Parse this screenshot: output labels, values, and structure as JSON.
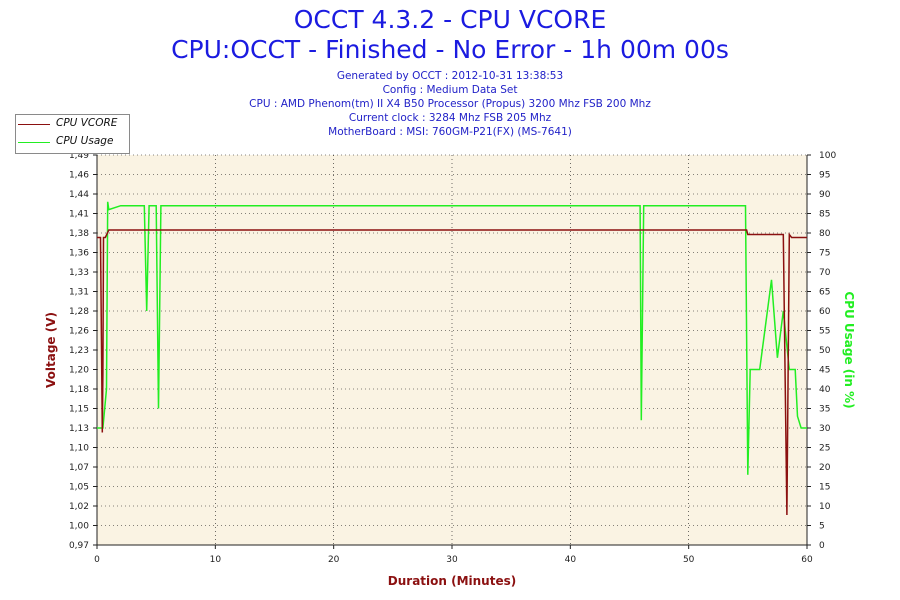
{
  "header": {
    "title": "OCCT 4.3.2 - CPU VCORE",
    "subtitle": "CPU:OCCT - Finished - No Error - 1h 00m 00s",
    "generated": "Generated by OCCT : 2012-10-31 13:38:53",
    "config": "Config : Medium Data Set",
    "cpu": "CPU : AMD Phenom(tm) II X4 B50 Processor (Propus) 3200 Mhz FSB 200 Mhz",
    "clock": "Current clock : 3284 Mhz FSB 205 Mhz",
    "motherboard": "MotherBoard : MSI: 760GM-P21(FX) (MS-7641)"
  },
  "colors": {
    "vcore": "#8b1010",
    "usage": "#22ee22",
    "plot_bg": "#faf3e3",
    "grid": "#111111",
    "title": "#1b1be0",
    "xlabel": "#8b1010"
  },
  "chart_data": {
    "type": "line",
    "xlabel": "Duration (Minutes)",
    "ylabel_left": "Voltage (V)",
    "ylabel_right": "CPU Usage (in %)",
    "xlim": [
      0,
      60
    ],
    "ylim_left": [
      0.97,
      1.49
    ],
    "ylim_right": [
      0,
      100
    ],
    "x_ticks": [
      0,
      10,
      20,
      30,
      40,
      50,
      60
    ],
    "y_left_ticks": [
      "0,97",
      "1,00",
      "1,02",
      "1,05",
      "1,07",
      "1,10",
      "1,13",
      "1,15",
      "1,18",
      "1,20",
      "1,23",
      "1,26",
      "1,28",
      "1,31",
      "1,33",
      "1,36",
      "1,38",
      "1,41",
      "1,44",
      "1,46",
      "1,49"
    ],
    "y_right_ticks": [
      0,
      5,
      10,
      15,
      20,
      25,
      30,
      35,
      40,
      45,
      50,
      55,
      60,
      65,
      70,
      75,
      80,
      85,
      90,
      95,
      100
    ],
    "grid": true,
    "legend_position": "top-left",
    "series": [
      {
        "name": "CPU VCORE",
        "axis": "left",
        "x": [
          0,
          0.3,
          0.45,
          0.5,
          0.55,
          0.7,
          1.0,
          2,
          5,
          10,
          15,
          20,
          25,
          30,
          35,
          40,
          45,
          50,
          54.9,
          55.0,
          56,
          57,
          58,
          58.3,
          58.5,
          58.7,
          59,
          60
        ],
        "y": [
          1.38,
          1.38,
          1.12,
          1.2,
          1.38,
          1.38,
          1.39,
          1.39,
          1.39,
          1.39,
          1.39,
          1.39,
          1.39,
          1.39,
          1.39,
          1.39,
          1.39,
          1.39,
          1.39,
          1.384,
          1.384,
          1.384,
          1.384,
          1.01,
          1.384,
          1.38,
          1.38,
          1.38
        ]
      },
      {
        "name": "CPU Usage",
        "axis": "right",
        "x": [
          0,
          0.5,
          0.8,
          0.9,
          1.0,
          2,
          4,
          4.2,
          4.4,
          5,
          5.2,
          5.4,
          6,
          10,
          20,
          30,
          40,
          45.9,
          46.0,
          46.2,
          50,
          54.8,
          55.0,
          55.2,
          55.5,
          56,
          57,
          57.5,
          58,
          58.5,
          59,
          59.2,
          59.5,
          60
        ],
        "y": [
          30,
          30,
          40,
          88,
          86,
          87,
          87,
          60,
          87,
          87,
          35,
          87,
          87,
          87,
          87,
          87,
          87,
          87,
          32,
          87,
          87,
          87,
          18,
          45,
          45,
          45,
          68,
          48,
          60,
          45,
          45,
          33,
          30,
          30
        ]
      }
    ]
  }
}
